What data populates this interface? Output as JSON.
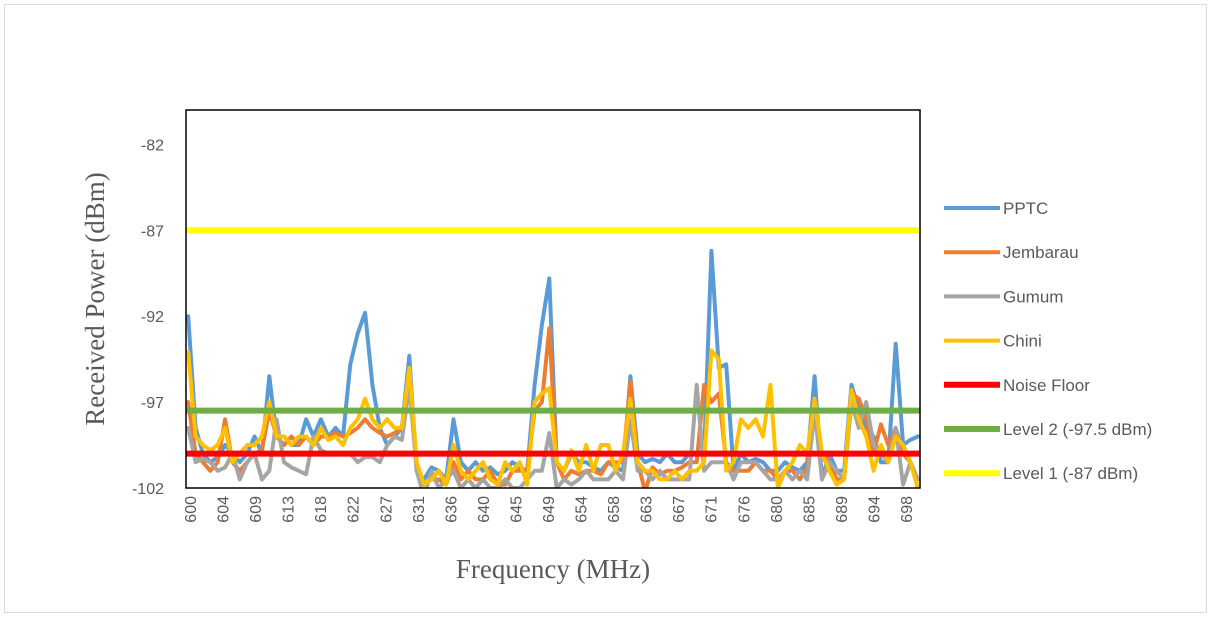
{
  "chart_data": {
    "type": "line",
    "xlabel": "Frequency (MHz)",
    "ylabel": "Received Power (dBm)",
    "ylim": [
      -102,
      -80
    ],
    "yticks": [
      -82,
      -87,
      -92,
      -97,
      -102
    ],
    "x_tick_labels": [
      "600",
      "604",
      "609",
      "613",
      "618",
      "622",
      "627",
      "631",
      "636",
      "640",
      "645",
      "649",
      "654",
      "658",
      "663",
      "667",
      "671",
      "676",
      "680",
      "685",
      "689",
      "694",
      "698"
    ],
    "x": [
      600,
      601,
      602,
      603,
      604,
      605,
      606,
      607,
      608,
      609,
      610,
      611,
      612,
      613,
      614,
      615,
      616,
      617,
      618,
      619,
      620,
      621,
      622,
      623,
      624,
      625,
      626,
      627,
      628,
      629,
      630,
      631,
      632,
      633,
      634,
      635,
      636,
      637,
      638,
      639,
      640,
      641,
      642,
      643,
      644,
      645,
      646,
      647,
      648,
      649,
      650,
      651,
      652,
      653,
      654,
      655,
      656,
      657,
      658,
      659,
      660,
      661,
      662,
      663,
      664,
      665,
      666,
      667,
      668,
      669,
      670,
      671,
      672,
      673,
      674,
      675,
      676,
      677,
      678,
      679,
      680,
      681,
      682,
      683,
      684,
      685,
      686,
      687,
      688,
      689,
      690,
      691,
      692,
      693,
      694,
      695,
      696,
      697,
      698,
      699
    ],
    "grid": false,
    "legend_position": "right",
    "series": [
      {
        "name": "PPTC",
        "color": "#5b9bd5",
        "width": 4,
        "values": [
          -92.0,
          -98.5,
          -100.0,
          -100.5,
          -100.2,
          -99.5,
          -100.0,
          -100.5,
          -100.0,
          -99.0,
          -100.0,
          -95.5,
          -99.0,
          -99.0,
          -99.5,
          -99.5,
          -98.0,
          -99.0,
          -98.0,
          -99.0,
          -98.5,
          -99.0,
          -94.8,
          -93.0,
          -91.8,
          -96.0,
          -98.5,
          -99.5,
          -99.0,
          -98.5,
          -94.3,
          -101.0,
          -101.5,
          -100.8,
          -101.0,
          -101.5,
          -98.0,
          -100.5,
          -101.0,
          -100.5,
          -101.0,
          -100.8,
          -101.2,
          -101.0,
          -100.5,
          -100.8,
          -101.0,
          -96.0,
          -92.5,
          -89.8,
          -100.5,
          -101.0,
          -100.0,
          -100.5,
          -100.5,
          -100.8,
          -101.0,
          -100.5,
          -100.8,
          -101.0,
          -95.5,
          -100.0,
          -100.5,
          -100.3,
          -100.5,
          -100.0,
          -100.5,
          -100.5,
          -100.0,
          -100.0,
          -100.0,
          -88.2,
          -95.0,
          -94.8,
          -101.0,
          -100.0,
          -100.5,
          -100.3,
          -100.5,
          -101.0,
          -101.0,
          -100.5,
          -100.8,
          -101.0,
          -100.5,
          -95.5,
          -101.5,
          -100.0,
          -101.0,
          -101.0,
          -96.0,
          -97.5,
          -98.5,
          -99.0,
          -100.5,
          -100.5,
          -93.6,
          -99.5,
          -99.2,
          -99.0
        ]
      },
      {
        "name": "Jembarau",
        "color": "#ed7d31",
        "width": 4,
        "values": [
          -97.0,
          -100.0,
          -100.5,
          -101.0,
          -100.5,
          -98.0,
          -100.5,
          -101.0,
          -100.5,
          -100.0,
          -99.8,
          -97.5,
          -99.0,
          -99.5,
          -99.0,
          -99.5,
          -99.0,
          -99.5,
          -99.0,
          -99.0,
          -98.8,
          -99.0,
          -98.8,
          -98.5,
          -98.0,
          -98.5,
          -98.8,
          -99.0,
          -98.8,
          -98.5,
          -95.5,
          -101.0,
          -101.8,
          -101.5,
          -101.5,
          -101.8,
          -100.5,
          -101.5,
          -101.0,
          -101.5,
          -101.5,
          -101.0,
          -101.8,
          -101.8,
          -101.0,
          -101.0,
          -101.0,
          -97.5,
          -97.0,
          -92.7,
          -100.5,
          -101.5,
          -101.0,
          -101.2,
          -101.0,
          -101.0,
          -101.2,
          -100.5,
          -100.5,
          -100.5,
          -95.8,
          -100.5,
          -102.2,
          -100.8,
          -101.2,
          -101.0,
          -101.0,
          -100.8,
          -100.5,
          -100.5,
          -96.0,
          -97.0,
          -96.5,
          -100.5,
          -101.0,
          -101.0,
          -101.0,
          -100.5,
          -101.0,
          -101.0,
          -101.5,
          -101.0,
          -101.0,
          -101.5,
          -100.8,
          -97.0,
          -100.0,
          -100.5,
          -101.5,
          -101.5,
          -96.5,
          -96.8,
          -98.0,
          -100.0,
          -98.3,
          -99.5,
          -98.5,
          -100.0,
          -100.5,
          -101.5
        ]
      },
      {
        "name": "Gumum",
        "color": "#a5a5a5",
        "width": 4,
        "values": [
          -98.5,
          -100.5,
          -100.3,
          -100.5,
          -101.0,
          -100.8,
          -100.0,
          -101.5,
          -100.5,
          -100.0,
          -101.5,
          -101.0,
          -98.0,
          -100.5,
          -100.8,
          -101.0,
          -101.2,
          -99.0,
          -99.8,
          -100.0,
          -100.0,
          -100.0,
          -100.0,
          -100.5,
          -100.2,
          -100.2,
          -100.5,
          -99.5,
          -99.0,
          -99.2,
          -96.0,
          -101.0,
          -102.5,
          -101.0,
          -102.0,
          -101.5,
          -101.0,
          -102.0,
          -101.5,
          -102.0,
          -101.5,
          -102.0,
          -102.0,
          -101.5,
          -102.0,
          -102.0,
          -101.5,
          -101.0,
          -101.0,
          -98.8,
          -102.0,
          -101.5,
          -101.8,
          -101.5,
          -101.0,
          -101.5,
          -101.5,
          -101.5,
          -101.0,
          -101.5,
          -98.0,
          -101.0,
          -101.0,
          -101.5,
          -101.0,
          -101.5,
          -101.5,
          -101.5,
          -101.5,
          -96.0,
          -101.0,
          -100.5,
          -100.5,
          -100.5,
          -101.5,
          -100.5,
          -100.5,
          -100.5,
          -101.0,
          -101.5,
          -101.5,
          -101.0,
          -101.5,
          -101.0,
          -101.5,
          -97.5,
          -101.5,
          -100.5,
          -101.0,
          -101.5,
          -97.0,
          -98.5,
          -97.0,
          -99.5,
          -100.0,
          -100.5,
          -98.5,
          -101.8,
          -100.5,
          -101.5
        ]
      },
      {
        "name": "Chini",
        "color": "#ffc000",
        "width": 4,
        "values": [
          -94.1,
          -99.0,
          -99.5,
          -99.8,
          -99.5,
          -98.5,
          -100.5,
          -100.0,
          -99.5,
          -99.5,
          -99.0,
          -97.0,
          -99.0,
          -99.0,
          -99.5,
          -99.0,
          -99.0,
          -99.5,
          -98.5,
          -99.2,
          -99.0,
          -99.5,
          -98.5,
          -98.0,
          -96.8,
          -98.0,
          -98.5,
          -98.0,
          -98.5,
          -98.5,
          -95.0,
          -100.5,
          -101.8,
          -101.5,
          -101.0,
          -101.8,
          -99.5,
          -101.0,
          -101.5,
          -101.0,
          -100.5,
          -101.5,
          -101.8,
          -100.5,
          -101.0,
          -100.5,
          -101.8,
          -97.0,
          -96.5,
          -96.2,
          -100.5,
          -101.0,
          -99.8,
          -101.0,
          -99.5,
          -101.0,
          -99.5,
          -99.5,
          -101.0,
          -100.0,
          -96.8,
          -100.5,
          -101.0,
          -101.0,
          -101.5,
          -101.5,
          -101.0,
          -101.5,
          -101.0,
          -101.0,
          -100.5,
          -94.0,
          -94.5,
          -101.0,
          -100.5,
          -98.0,
          -98.5,
          -98.0,
          -99.0,
          -96.0,
          -102.0,
          -101.0,
          -100.5,
          -99.5,
          -100.0,
          -96.8,
          -100.0,
          -101.0,
          -101.8,
          -101.5,
          -96.3,
          -98.0,
          -99.0,
          -101.0,
          -99.5,
          -100.5,
          -99.0,
          -99.5,
          -100.5,
          -102.0
        ]
      },
      {
        "name": "Noise Floor",
        "color": "#ff0000",
        "width": 6,
        "constant": -100
      },
      {
        "name": "Level 2 (-97.5 dBm)",
        "color": "#70ad47",
        "width": 6,
        "constant": -97.5
      },
      {
        "name": "Level 1 (-87 dBm)",
        "color": "#ffff00",
        "width": 6,
        "constant": -87
      }
    ]
  }
}
